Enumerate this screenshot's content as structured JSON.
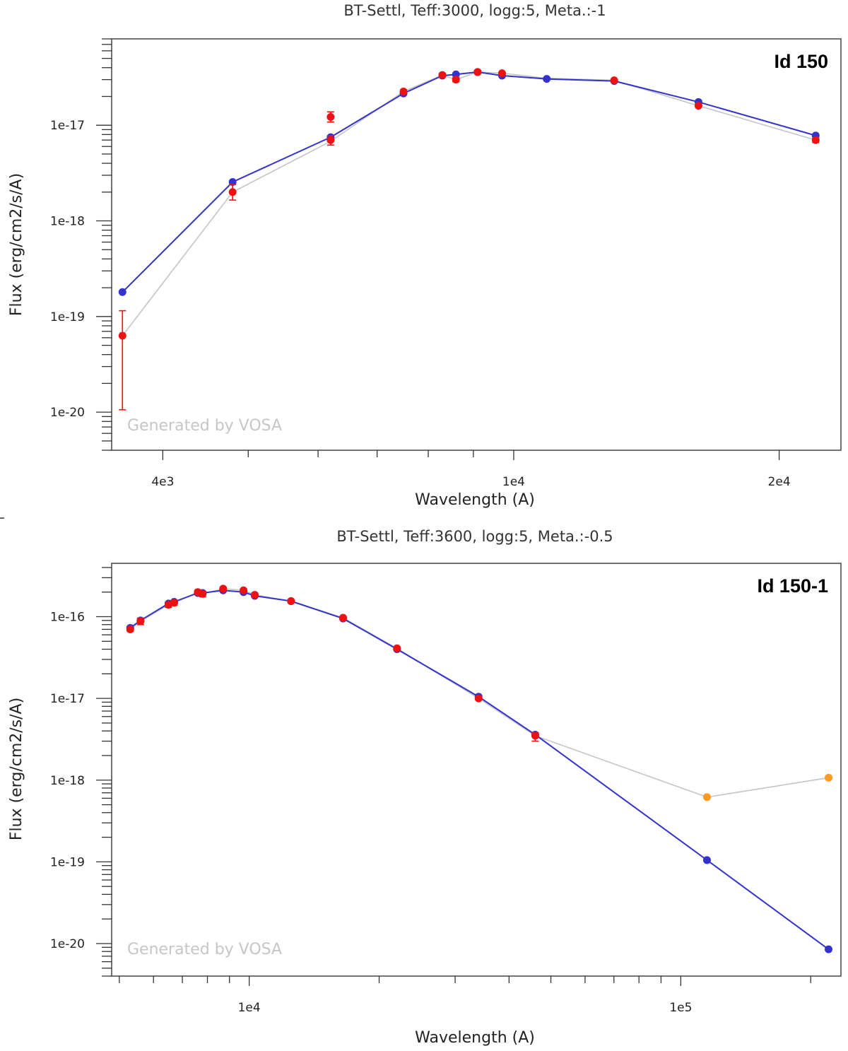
{
  "chart_data": [
    {
      "type": "line",
      "scale": {
        "x": "log",
        "y": "log"
      },
      "title": "BT-Settl, Teff:3000, logg:5, Meta.:-1",
      "id_label": "Id 150",
      "watermark": "Generated by VOSA",
      "xlabel": "Wavelength (A)",
      "ylabel": "Flux (erg/cm2/s/A)",
      "xlim": [
        3500,
        23500
      ],
      "ylim": [
        4e-21,
        8e-17
      ],
      "x_major_ticks": [
        4000,
        10000,
        20000
      ],
      "x_tick_labels": [
        "4e3",
        "1e4",
        "2e4"
      ],
      "y_major_ticks": [
        1e-20,
        1e-19,
        1e-18,
        1e-17
      ],
      "y_tick_labels": [
        "1e-20",
        "1e-19",
        "1e-18",
        "1e-17"
      ],
      "colors": {
        "model": "#3333cc",
        "observed": "#ee1111",
        "observed_line": "#c4c4c4",
        "excess": "#ff9922"
      },
      "series": [
        {
          "name": "model",
          "x": [
            3600,
            4800,
            6200,
            7500,
            8300,
            8600,
            9100,
            9700,
            10900,
            13000,
            16200,
            22000
          ],
          "y": [
            1.8e-19,
            2.55e-18,
            7.5e-18,
            2.15e-17,
            3.3e-17,
            3.4e-17,
            3.6e-17,
            3.3e-17,
            3.05e-17,
            2.9e-17,
            1.75e-17,
            7.8e-18
          ]
        },
        {
          "name": "observed",
          "x": [
            3600,
            4800,
            6200,
            6200,
            7500,
            8300,
            8600,
            9100,
            9700,
            13000,
            16200,
            22000
          ],
          "y": [
            6.3e-20,
            2e-18,
            1.22e-17,
            7e-18,
            2.25e-17,
            3.35e-17,
            3e-17,
            3.6e-17,
            3.5e-17,
            2.95e-17,
            1.6e-17,
            7e-18
          ],
          "yerr_low": [
            1.06e-20,
            1.65e-18,
            1.08e-17,
            6.2e-18,
            2.15e-17,
            3.2e-17,
            2.85e-17,
            3.45e-17,
            3.4e-17,
            2.9e-17,
            1.55e-17,
            6.6e-18
          ],
          "yerr_high": [
            1.15e-19,
            2.4e-18,
            1.38e-17,
            7.8e-18,
            2.35e-17,
            3.5e-17,
            3.15e-17,
            3.75e-17,
            3.6e-17,
            3e-17,
            1.65e-17,
            7.4e-18
          ]
        },
        {
          "name": "observed_line",
          "x": [
            3600,
            4800,
            6200,
            7500,
            8300,
            8600,
            9100,
            9700,
            10900,
            13000,
            16200,
            22000
          ],
          "y": [
            6.3e-20,
            2e-18,
            6.8e-18,
            2.25e-17,
            3.35e-17,
            3e-17,
            3.6e-17,
            3.5e-17,
            3.1e-17,
            2.95e-17,
            1.6e-17,
            7e-18
          ]
        }
      ]
    },
    {
      "type": "line",
      "scale": {
        "x": "log",
        "y": "log"
      },
      "title": "BT-Settl, Teff:3600, logg:5, Meta.:-0.5",
      "id_label": "Id 150-1",
      "watermark": "Generated by VOSA",
      "xlabel": "Wavelength (A)",
      "ylabel": "Flux (erg/cm2/s/A)",
      "xlim": [
        4800,
        235000
      ],
      "ylim": [
        4e-21,
        4.5e-16
      ],
      "x_major_ticks": [
        10000,
        100000
      ],
      "x_tick_labels": [
        "1e4",
        "1e5"
      ],
      "y_major_ticks": [
        1e-20,
        1e-19,
        1e-18,
        1e-17,
        1e-16
      ],
      "y_tick_labels": [
        "1e-20",
        "1e-19",
        "1e-18",
        "1e-17",
        "1e-16"
      ],
      "colors": {
        "model": "#3333cc",
        "observed": "#ee1111",
        "observed_line": "#c4c4c4",
        "excess": "#ff9922"
      },
      "series": [
        {
          "name": "model",
          "x": [
            5300,
            5600,
            6500,
            6700,
            7600,
            7800,
            8700,
            9700,
            10300,
            12500,
            16500,
            22000,
            34000,
            46000,
            115000,
            220000
          ],
          "y": [
            7.3e-17,
            9e-17,
            1.45e-16,
            1.52e-16,
            1.95e-16,
            1.95e-16,
            2.1e-16,
            2e-16,
            1.8e-16,
            1.55e-16,
            9.5e-17,
            4e-17,
            1.05e-17,
            3.6e-18,
            1.05e-19,
            8.5e-21
          ]
        },
        {
          "name": "observed",
          "x": [
            5300,
            5600,
            6500,
            6700,
            7600,
            7800,
            8700,
            9700,
            10300,
            12500,
            16500,
            22000,
            34000,
            46000
          ],
          "y": [
            7e-17,
            8.8e-17,
            1.4e-16,
            1.48e-16,
            2e-16,
            1.9e-16,
            2.2e-16,
            2.1e-16,
            1.85e-16,
            1.55e-16,
            9.7e-17,
            4.1e-17,
            1e-17,
            3.5e-18
          ],
          "yerr_low": [
            6.6e-17,
            8e-17,
            1.3e-16,
            1.38e-16,
            1.88e-16,
            1.75e-16,
            2.1e-16,
            2e-16,
            1.75e-16,
            1.48e-16,
            9.3e-17,
            3.95e-17,
            9.6e-18,
            3e-18
          ],
          "yerr_high": [
            7.4e-17,
            9.6e-17,
            1.5e-16,
            1.58e-16,
            2.12e-16,
            2.05e-16,
            2.3e-16,
            2.2e-16,
            1.95e-16,
            1.62e-16,
            1.01e-16,
            4.25e-17,
            1.04e-17,
            3.8e-18
          ]
        },
        {
          "name": "excess",
          "x": [
            115000,
            220000
          ],
          "y": [
            6.2e-19,
            1.07e-18
          ]
        },
        {
          "name": "observed_line",
          "x": [
            5300,
            5600,
            6500,
            6700,
            7600,
            7800,
            8700,
            9700,
            10300,
            12500,
            16500,
            22000,
            34000,
            46000,
            115000,
            220000
          ],
          "y": [
            7e-17,
            8.8e-17,
            1.4e-16,
            1.48e-16,
            2e-16,
            1.9e-16,
            2.2e-16,
            2.1e-16,
            1.85e-16,
            1.55e-16,
            9.7e-17,
            4.1e-17,
            1e-17,
            3.5e-18,
            6.2e-19,
            1.07e-18
          ]
        }
      ]
    }
  ]
}
